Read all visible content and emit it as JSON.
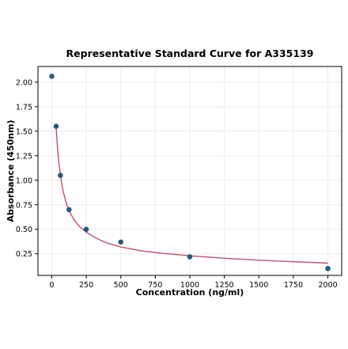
{
  "chart_data": {
    "type": "scatter",
    "title": "Representative Standard Curve for A335139",
    "xlabel": "Concentration (ng/ml)",
    "ylabel": "Absorbance (450nm)",
    "xlim": [
      -100,
      2100
    ],
    "ylim": [
      0.03,
      2.16
    ],
    "xticks": [
      0,
      250,
      500,
      750,
      1000,
      1250,
      1500,
      1750,
      2000
    ],
    "yticks": [
      0.25,
      0.5,
      0.75,
      1.0,
      1.25,
      1.5,
      1.75,
      2.0
    ],
    "xtick_labels": [
      "0",
      "250",
      "500",
      "750",
      "1000",
      "1250",
      "1500",
      "1750",
      "2000"
    ],
    "ytick_labels": [
      "0.25",
      "0.50",
      "0.75",
      "1.00",
      "1.25",
      "1.50",
      "1.75",
      "2.00"
    ],
    "grid": true,
    "points": {
      "x": [
        0,
        31.25,
        62.5,
        125,
        250,
        500,
        1000,
        2000
      ],
      "y": [
        2.06,
        1.55,
        1.05,
        0.7,
        0.5,
        0.37,
        0.22,
        0.1
      ]
    },
    "fit_curve": {
      "x": [
        31.25,
        40,
        50,
        62.5,
        80,
        100,
        125,
        160,
        200,
        250,
        320,
        400,
        500,
        650,
        800,
        1000,
        1250,
        1500,
        1750,
        2000
      ],
      "y": [
        1.55,
        1.36,
        1.2,
        1.05,
        0.9,
        0.79,
        0.69,
        0.6,
        0.53,
        0.47,
        0.41,
        0.36,
        0.32,
        0.28,
        0.255,
        0.23,
        0.205,
        0.185,
        0.17,
        0.155
      ]
    },
    "colors": {
      "marker": "#1f5f8b",
      "marker_edge": "#1a3550",
      "curve": "#c0506a",
      "grid": "#e6e6e6",
      "axes": "#000000"
    }
  }
}
